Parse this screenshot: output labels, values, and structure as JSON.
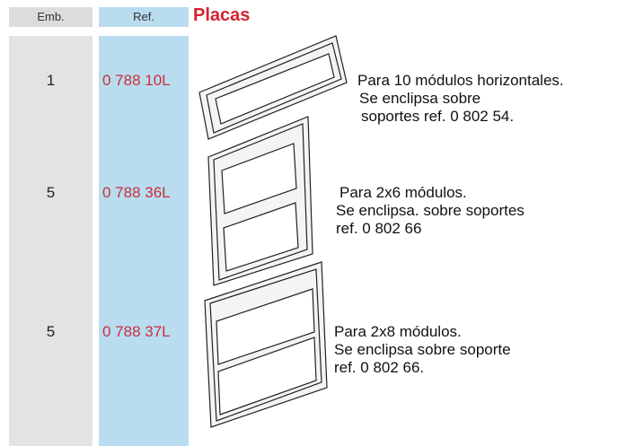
{
  "header": {
    "emb": "Emb.",
    "ref": "Ref.",
    "title": "Placas"
  },
  "rows": [
    {
      "emb": "1",
      "ref": "0 788 10L",
      "description": [
        "Para 10 módulos horizontales.",
        "Se enclipsa sobre",
        "soportes ref. 0 802 54."
      ]
    },
    {
      "emb": "5",
      "ref": "0 788 36L",
      "description": [
        "Para 2x6 módulos.",
        "Se enclipsa. sobre soportes",
        "ref. 0 802 66"
      ]
    },
    {
      "emb": "5",
      "ref": "0 788 37L",
      "description": [
        "Para 2x8 módulos.",
        "Se enclipsa sobre soporte",
        "ref. 0 802 66."
      ]
    }
  ]
}
